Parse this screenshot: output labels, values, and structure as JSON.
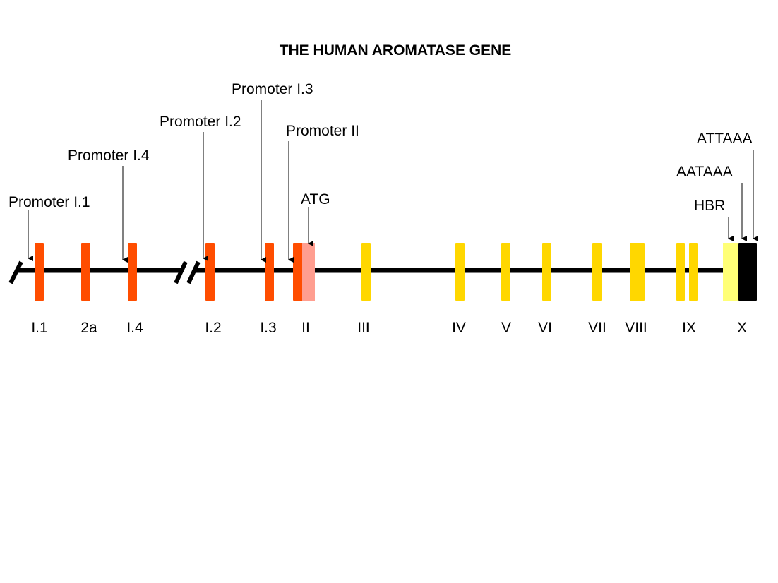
{
  "title": "THE HUMAN AROMATASE GENE",
  "colors": {
    "line": "#000000",
    "promoter_exon": "#ff4d00",
    "coding_exon": "#ffd700",
    "exon_ii_coding": "#ff9e90",
    "utr_light": "#ffff77",
    "utr_dark": "#000000"
  },
  "exon_labels": [
    "I.1",
    "2a",
    "I.4",
    "I.2",
    "I.3",
    "II",
    "III",
    "IV",
    "V",
    "VI",
    "VII",
    "VIII",
    "IX",
    "X"
  ],
  "promoters": [
    "Promoter I.1",
    "Promoter I.4",
    "Promoter I.2",
    "Promoter I.3",
    "Promoter II"
  ],
  "features": [
    "ATG",
    "HBR",
    "AATAAA",
    "ATTAAA"
  ]
}
